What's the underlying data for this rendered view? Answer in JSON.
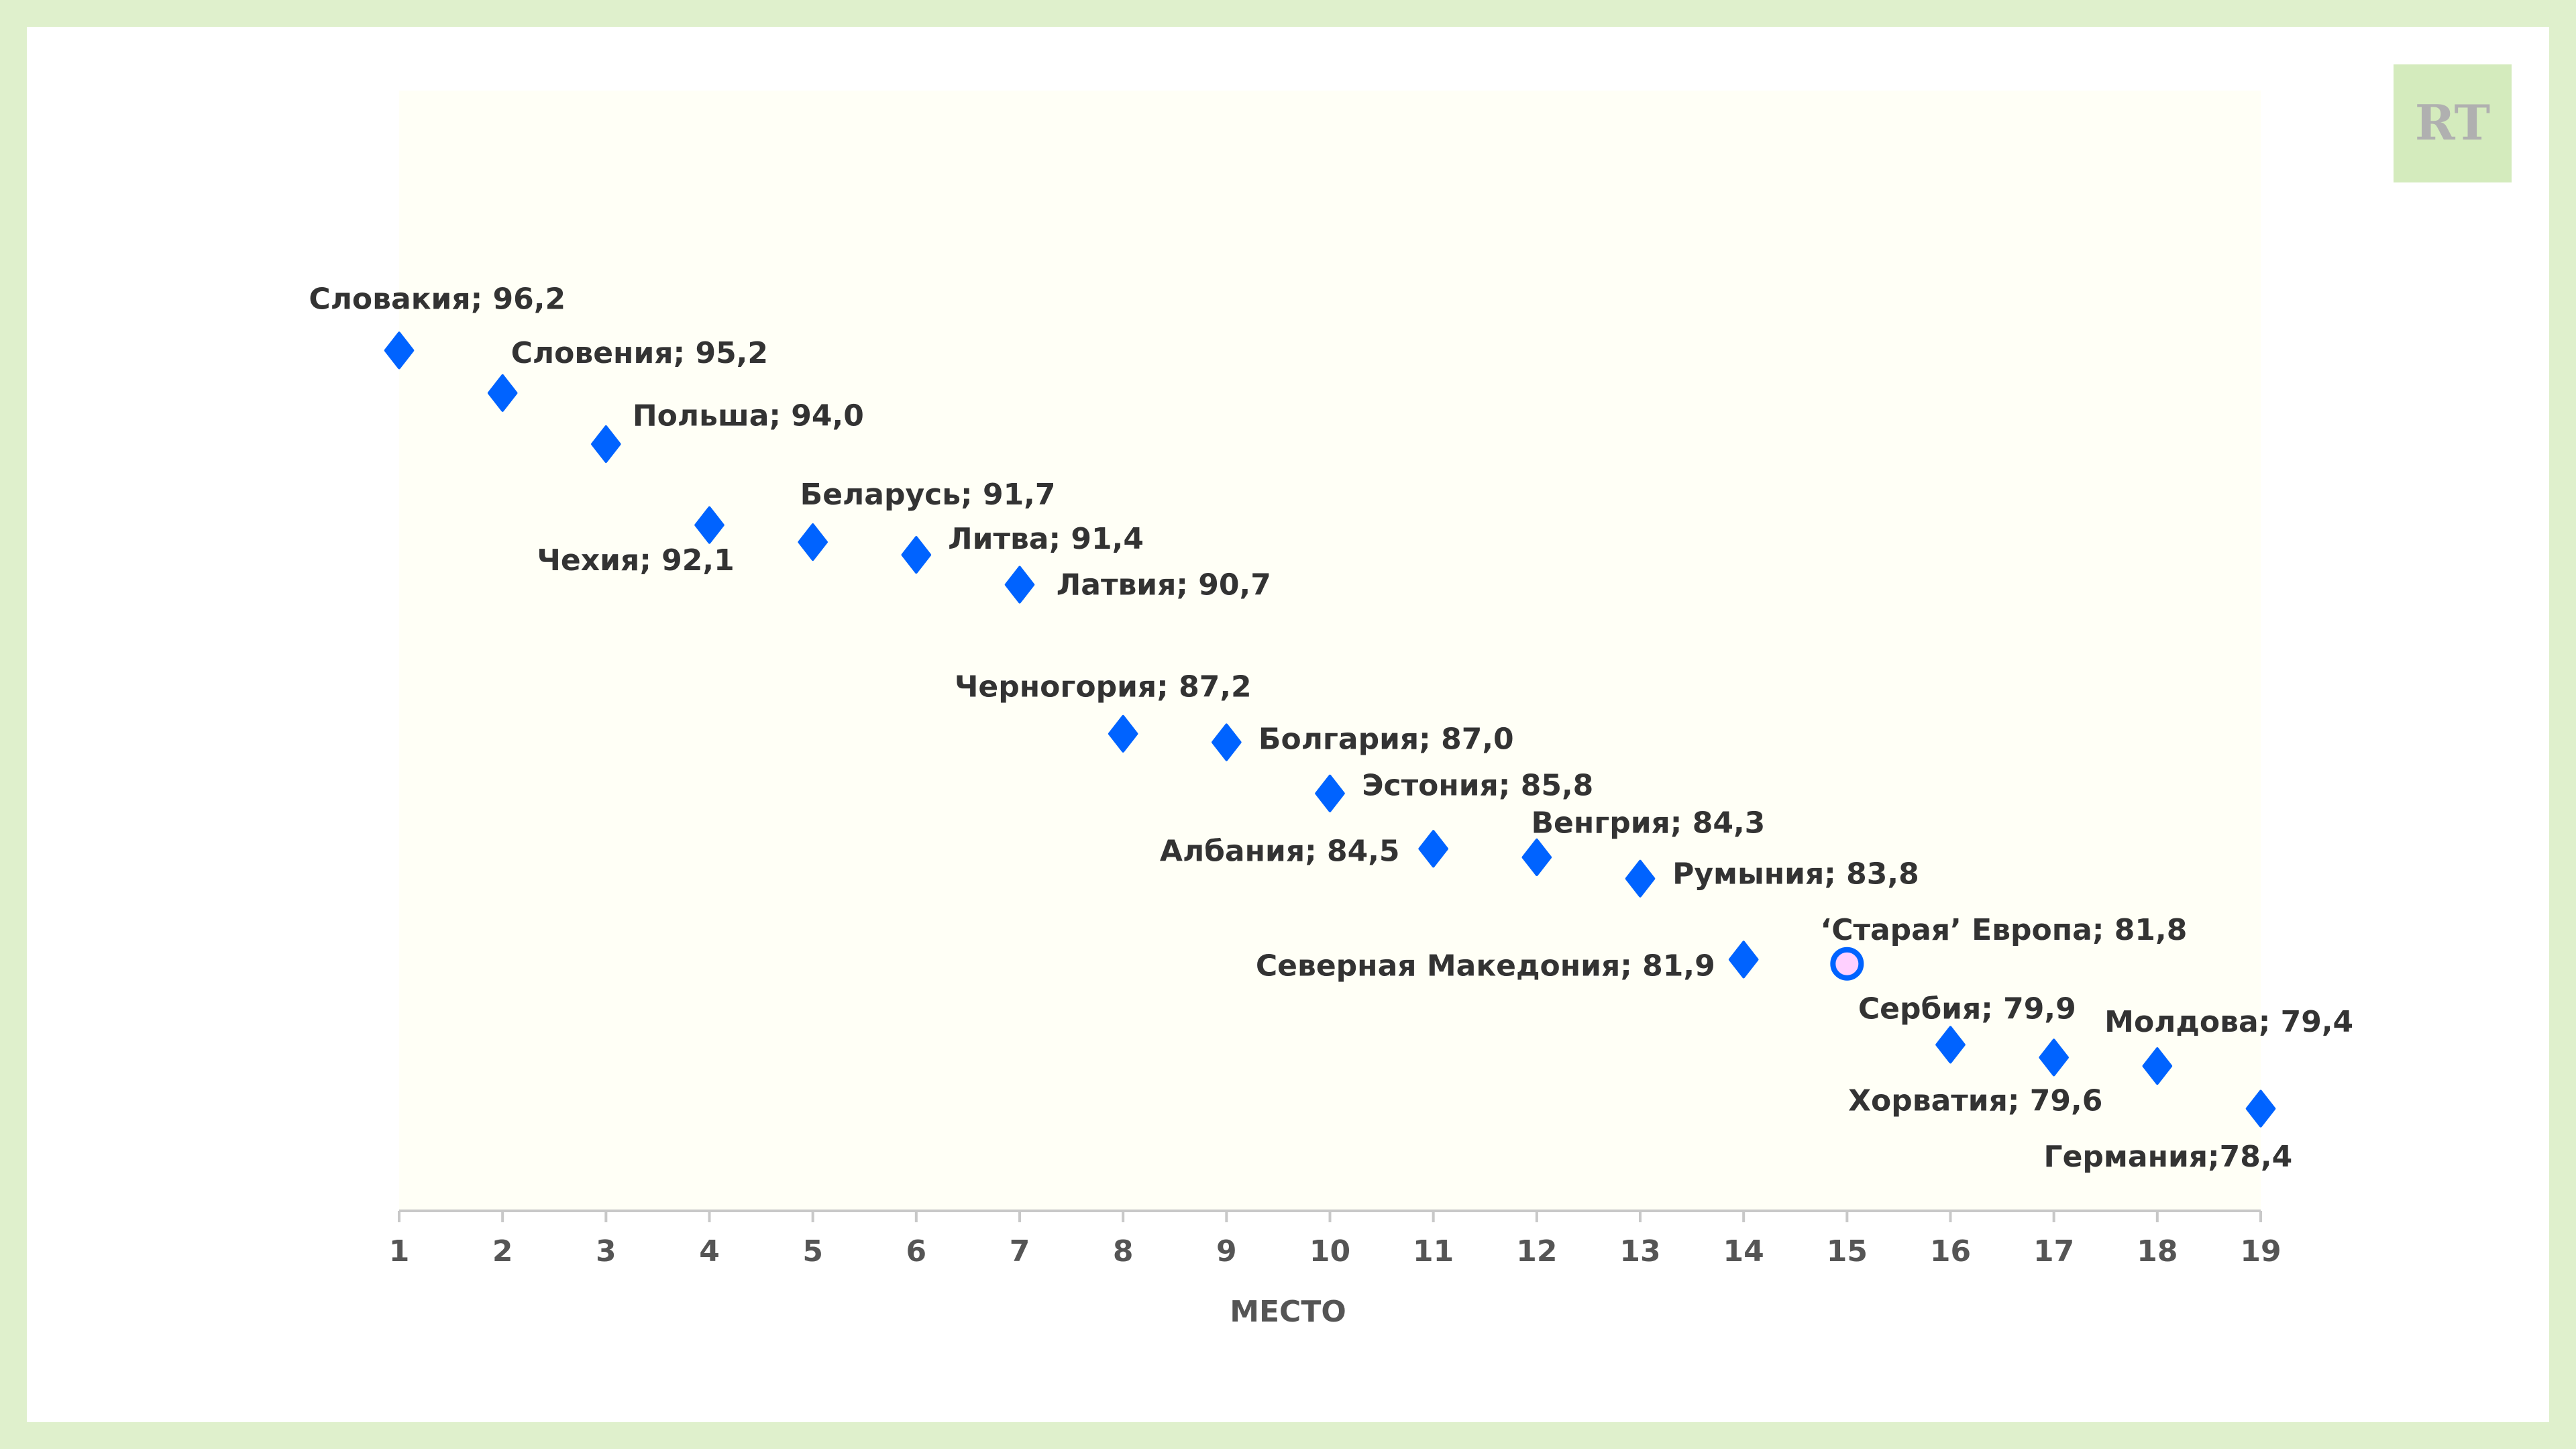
{
  "logo": {
    "text": "RT"
  },
  "chart_data": {
    "type": "scatter",
    "title": "",
    "xlabel": "МЕСТО",
    "ylabel": "",
    "xlim": [
      1,
      19
    ],
    "ylim": [
      76,
      102.3
    ],
    "grid": false,
    "x_ticks": [
      "1",
      "2",
      "3",
      "4",
      "5",
      "6",
      "7",
      "8",
      "9",
      "10",
      "11",
      "12",
      "13",
      "14",
      "15",
      "16",
      "17",
      "18",
      "19"
    ],
    "colors": {
      "marker": "#0063ff",
      "highlight_fill": "#ffd0ff",
      "plot_bg": "#fffff6",
      "frame": "#dff0cc"
    },
    "points": [
      {
        "x": 1,
        "y": 96.2,
        "label": "Словакия; 96,2",
        "marker": "diamond"
      },
      {
        "x": 2,
        "y": 95.2,
        "label": "Словения; 95,2",
        "marker": "diamond"
      },
      {
        "x": 3,
        "y": 94.0,
        "label": "Польша; 94,0",
        "marker": "diamond"
      },
      {
        "x": 4,
        "y": 92.1,
        "label": "Чехия; 92,1",
        "marker": "diamond"
      },
      {
        "x": 5,
        "y": 91.7,
        "label": "Беларусь; 91,7",
        "marker": "diamond"
      },
      {
        "x": 6,
        "y": 91.4,
        "label": "Литва; 91,4",
        "marker": "diamond"
      },
      {
        "x": 7,
        "y": 90.7,
        "label": "Латвия; 90,7",
        "marker": "diamond"
      },
      {
        "x": 8,
        "y": 87.2,
        "label": "Черногория; 87,2",
        "marker": "diamond"
      },
      {
        "x": 9,
        "y": 87.0,
        "label": "Болгария; 87,0",
        "marker": "diamond"
      },
      {
        "x": 10,
        "y": 85.8,
        "label": "Эстония; 85,8",
        "marker": "diamond"
      },
      {
        "x": 11,
        "y": 84.5,
        "label": "Албания; 84,5",
        "marker": "diamond"
      },
      {
        "x": 12,
        "y": 84.3,
        "label": "Венгрия; 84,3",
        "marker": "diamond"
      },
      {
        "x": 13,
        "y": 83.8,
        "label": "Румыния; 83,8",
        "marker": "diamond"
      },
      {
        "x": 14,
        "y": 81.9,
        "label": "Северная Македония; 81,9",
        "marker": "diamond"
      },
      {
        "x": 15,
        "y": 81.8,
        "label": "‘Старая’ Европа; 81,8",
        "marker": "circle"
      },
      {
        "x": 16,
        "y": 79.9,
        "label": "Сербия; 79,9",
        "marker": "diamond"
      },
      {
        "x": 17,
        "y": 79.6,
        "label": "Хорватия; 79,6",
        "marker": "diamond"
      },
      {
        "x": 18,
        "y": 79.4,
        "label": "Молдова; 79,4",
        "marker": "diamond"
      },
      {
        "x": 19,
        "y": 78.4,
        "label": "Германия;78,4",
        "marker": "diamond"
      }
    ]
  }
}
